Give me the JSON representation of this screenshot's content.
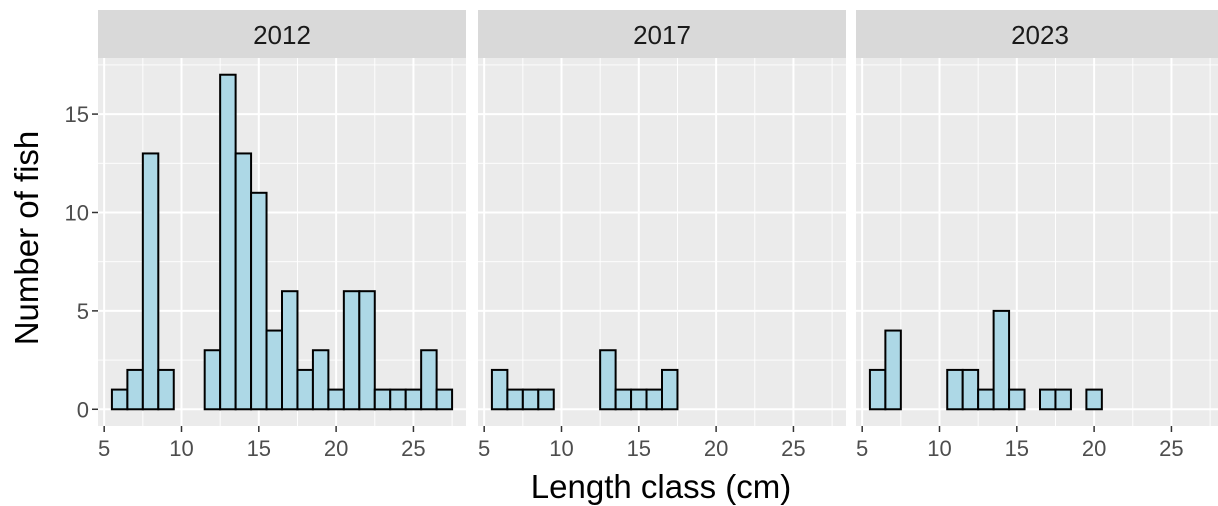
{
  "chart_data": {
    "type": "bar",
    "xlabel": "Length class (cm)",
    "ylabel": "Number of fish",
    "xlim": [
      4.6,
      28.4
    ],
    "ylim": [
      -0.85,
      17.85
    ],
    "x_ticks": [
      5,
      10,
      15,
      20,
      25
    ],
    "y_ticks": [
      0,
      5,
      10,
      15
    ],
    "bin_width": 1,
    "bin_centers": [
      6,
      7,
      8,
      9,
      10,
      11,
      12,
      13,
      14,
      15,
      16,
      17,
      18,
      19,
      20,
      21,
      22,
      23,
      24,
      25,
      26,
      27
    ],
    "colors": {
      "bar_fill": "#add8e6",
      "bar_stroke": "#000000",
      "panel_bg": "#ebebeb",
      "strip_bg": "#d9d9d9",
      "grid": "#ffffff"
    },
    "facets": [
      {
        "label": "2012",
        "values": [
          1,
          2,
          13,
          2,
          0,
          0,
          3,
          17,
          13,
          11,
          4,
          6,
          2,
          3,
          1,
          6,
          6,
          1,
          1,
          1,
          3,
          1
        ]
      },
      {
        "label": "2017",
        "values": [
          2,
          1,
          1,
          1,
          0,
          0,
          0,
          3,
          1,
          1,
          1,
          2,
          0,
          0,
          0,
          0,
          0,
          0,
          0,
          0,
          0,
          0
        ]
      },
      {
        "label": "2023",
        "values": [
          2,
          4,
          0,
          0,
          0,
          2,
          2,
          1,
          5,
          1,
          0,
          1,
          1,
          0,
          1,
          0,
          0,
          0,
          0,
          0,
          0,
          0
        ]
      }
    ]
  }
}
